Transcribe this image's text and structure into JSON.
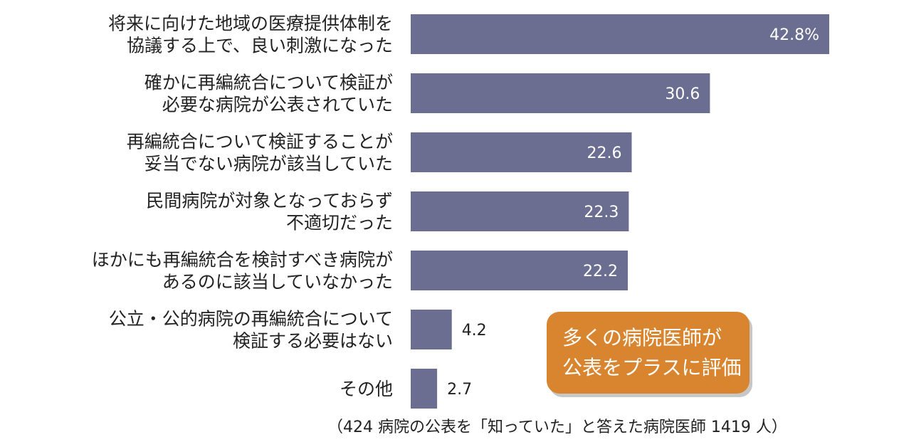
{
  "chart_data": {
    "type": "bar",
    "orientation": "horizontal",
    "categories": [
      [
        "将来に向けた地域の医療提供体制を",
        "協議する上で、良い刺激になった"
      ],
      [
        "確かに再編統合について検証が",
        "必要な病院が公表されていた"
      ],
      [
        "再編統合について検証することが",
        "妥当でない病院が該当していた"
      ],
      [
        "民間病院が対象となっておらず",
        "不適切だった"
      ],
      [
        "ほかにも再編統合を検討すべき病院が",
        "あるのに該当していなかった"
      ],
      [
        "公立・公的病院の再編統合について",
        "検証する必要はない"
      ],
      [
        "その他"
      ]
    ],
    "values": [
      42.8,
      30.6,
      22.6,
      22.3,
      22.2,
      4.2,
      2.7
    ],
    "value_labels": [
      "42.8%",
      "30.6",
      "22.6",
      "22.3",
      "22.2",
      "4.2",
      "2.7"
    ],
    "unit": "%",
    "xlim": [
      0,
      44
    ],
    "bar_color": "#6b6e91",
    "grid": false,
    "legend": "none"
  },
  "callout": {
    "lines": [
      "多くの病院医師が",
      "公表をプラスに評価"
    ],
    "color": "#d9852f"
  },
  "footnote": "（424 病院の公表を「知っていた」と答えた病院医師 1419 人）"
}
